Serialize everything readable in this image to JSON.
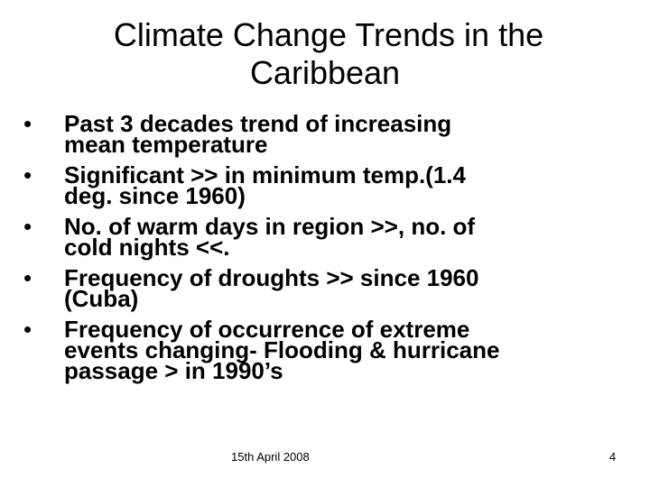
{
  "slide": {
    "title_lines": [
      "Climate Change Trends in the",
      "Caribbean"
    ],
    "bullet_symbol": "•",
    "bullets": [
      {
        "lines": [
          "Past 3 decades trend of increasing",
          "mean temperature"
        ]
      },
      {
        "lines": [
          "Significant >> in minimum temp.(1.4",
          "deg. since 1960)"
        ]
      },
      {
        "lines": [
          "No. of warm days in region >>, no. of",
          "cold nights <<."
        ]
      },
      {
        "lines": [
          "Frequency of droughts >> since 1960",
          "(Cuba)"
        ]
      },
      {
        "lines": [
          "Frequency of occurrence of extreme",
          "events changing- Flooding & hurricane",
          "passage > in 1990’s"
        ]
      }
    ],
    "footer": {
      "date": "15th April 2008",
      "page_number": "4"
    }
  }
}
